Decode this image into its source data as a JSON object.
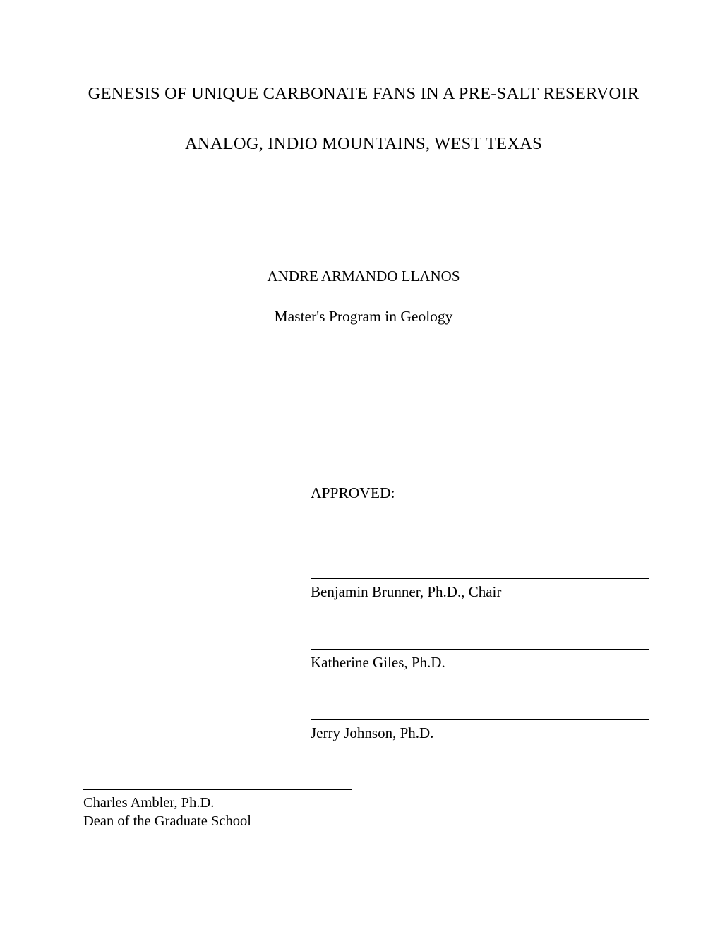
{
  "title_line1": "GENESIS OF UNIQUE CARBONATE FANS IN A PRE-SALT RESERVOIR",
  "title_line2": "ANALOG, INDIO MOUNTAINS, WEST TEXAS",
  "author": "ANDRE ARMANDO LLANOS",
  "program": "Master's Program in Geology",
  "approved_label": "APPROVED:",
  "committee": [
    "Benjamin Brunner, Ph.D., Chair",
    "Katherine Giles, Ph.D.",
    "Jerry Johnson, Ph.D."
  ],
  "dean_name": "Charles Ambler, Ph.D.",
  "dean_title": "Dean of the Graduate School",
  "colors": {
    "background": "#ffffff",
    "text": "#000000",
    "rule": "#000000"
  },
  "typography": {
    "family": "Times New Roman",
    "title_size_pt": 18,
    "body_size_pt": 16
  }
}
